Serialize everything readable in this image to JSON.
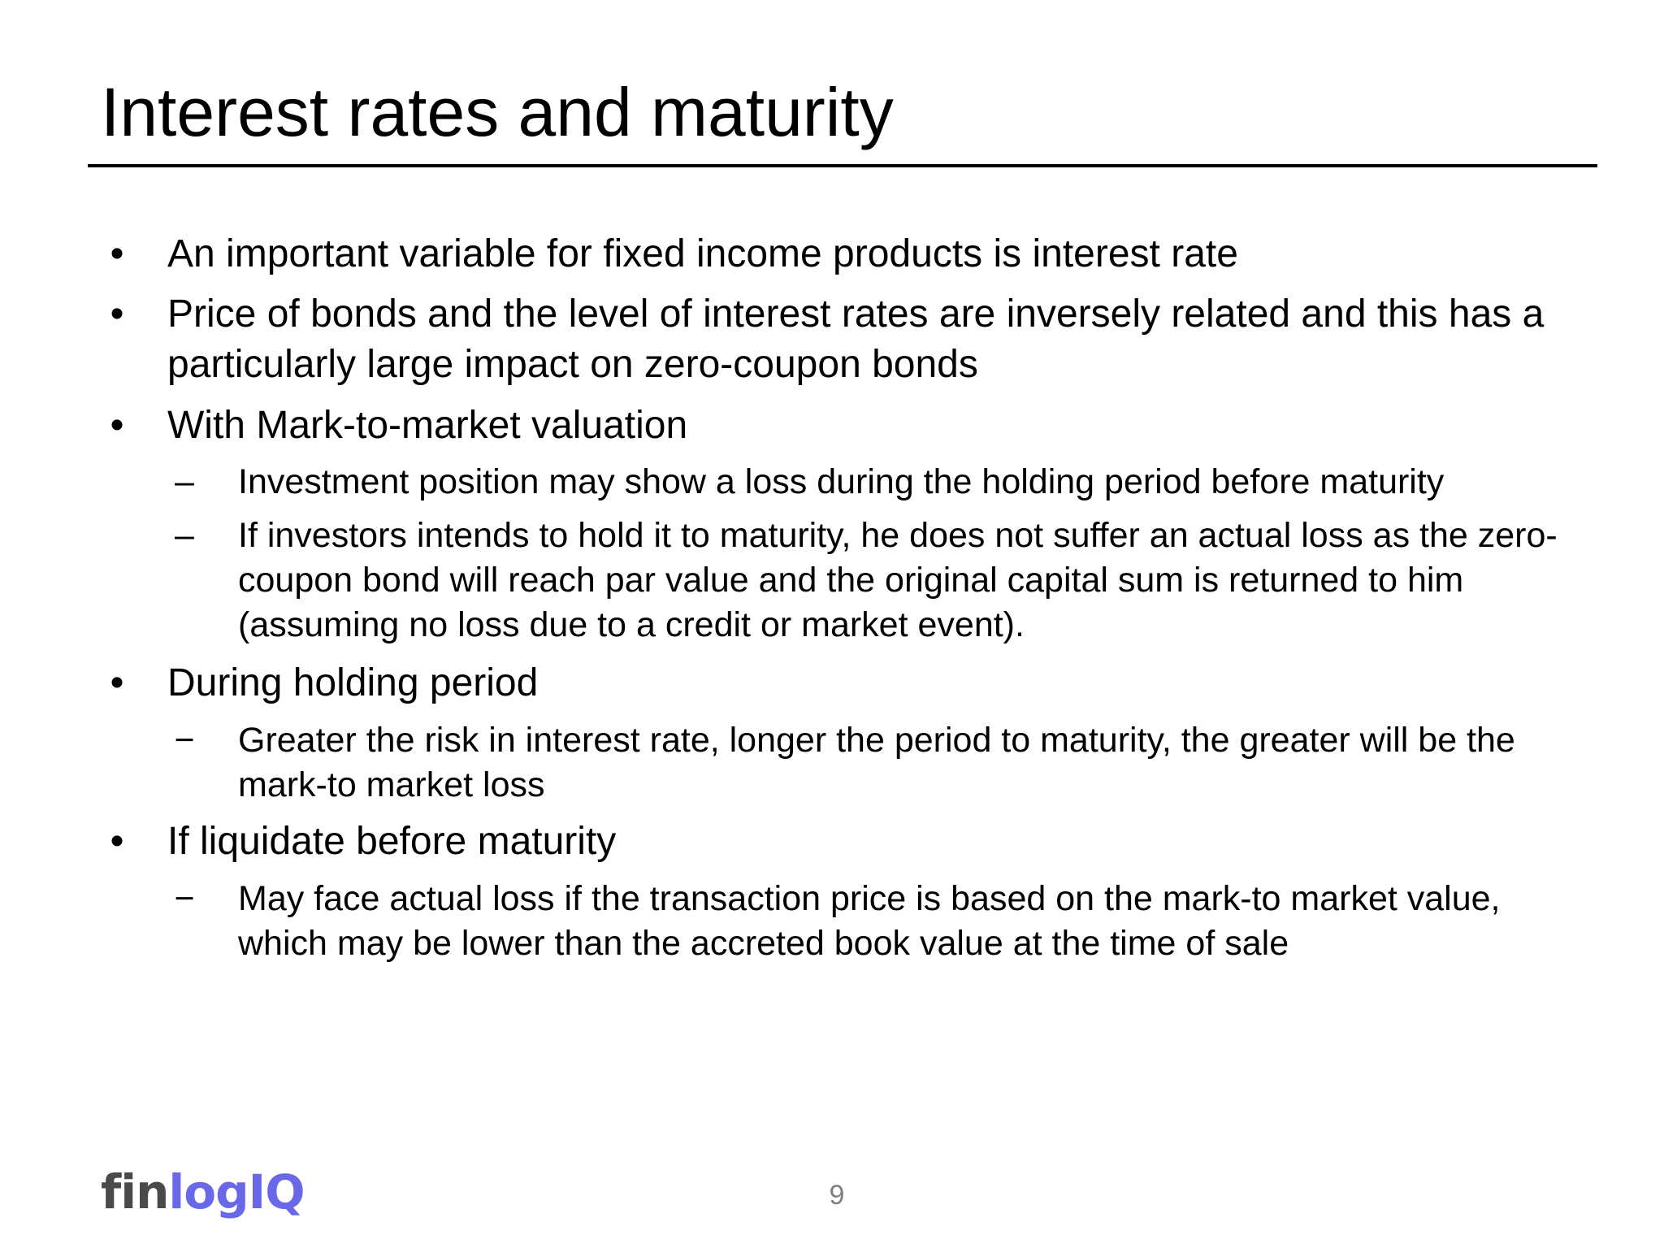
{
  "slide": {
    "title": "Interest rates and maturity",
    "page_number": "9"
  },
  "logo": {
    "part1": "fin",
    "part2": "logIQ",
    "part1_color": "#4a4a4a",
    "part2_color": "#6868e8"
  },
  "markers": {
    "bullet": "•",
    "dash": "–",
    "minus": "−"
  },
  "bullets": [
    {
      "text": "An important variable for fixed income products is interest rate"
    },
    {
      "text": "Price of bonds and the level of interest rates are inversely related and this has a particularly large impact on zero-coupon bonds"
    },
    {
      "text": "With Mark-to-market valuation",
      "subs": [
        {
          "text": "Investment position may show a loss during the holding period before maturity"
        },
        {
          "text": "If investors intends to hold it to maturity, he does not suffer an actual loss as the zero-coupon bond will reach par value and the original capital sum is returned to him (assuming no loss due to a credit or market event)."
        }
      ]
    },
    {
      "text": "During holding period",
      "subs": [
        {
          "text": "Greater the risk in interest rate, longer the period to maturity, the greater will be the mark-to market loss"
        }
      ]
    },
    {
      "text": "If liquidate before maturity",
      "subs": [
        {
          "text": "May face actual loss if the transaction price is based on the mark-to market value, which may be lower than the accreted book value at the time of sale"
        }
      ]
    }
  ]
}
